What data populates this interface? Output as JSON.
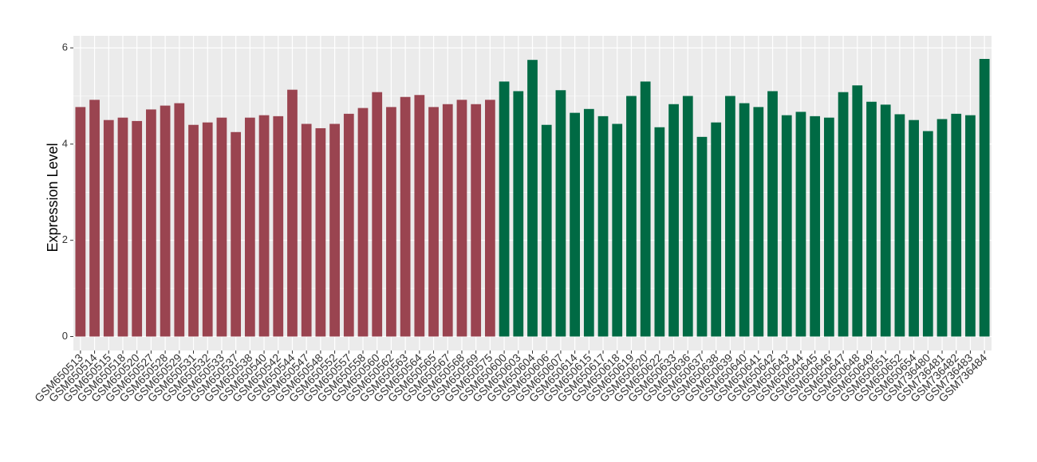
{
  "chart_data": {
    "type": "bar",
    "y_label": "Expression Level",
    "categories": [
      "GSM650513",
      "GSM650514",
      "GSM650515",
      "GSM650518",
      "GSM650520",
      "GSM650527",
      "GSM650528",
      "GSM650529",
      "GSM650531",
      "GSM650532",
      "GSM650533",
      "GSM650537",
      "GSM650538",
      "GSM650540",
      "GSM650542",
      "GSM650544",
      "GSM650547",
      "GSM650548",
      "GSM650552",
      "GSM650557",
      "GSM650558",
      "GSM650560",
      "GSM650562",
      "GSM650563",
      "GSM650564",
      "GSM650565",
      "GSM650567",
      "GSM650568",
      "GSM650569",
      "GSM650575",
      "GSM650600",
      "GSM650603",
      "GSM650604",
      "GSM650606",
      "GSM650607",
      "GSM650614",
      "GSM650615",
      "GSM650617",
      "GSM650618",
      "GSM650619",
      "GSM650620",
      "GSM650622",
      "GSM650633",
      "GSM650636",
      "GSM650637",
      "GSM650638",
      "GSM650639",
      "GSM650640",
      "GSM650641",
      "GSM650642",
      "GSM650643",
      "GSM650644",
      "GSM650645",
      "GSM650646",
      "GSM650647",
      "GSM650648",
      "GSM650649",
      "GSM650651",
      "GSM650652",
      "GSM650654",
      "GSM736480",
      "GSM736481",
      "GSM736482",
      "GSM736483",
      "GSM736484"
    ],
    "values": [
      4.77,
      4.92,
      4.5,
      4.55,
      4.48,
      4.72,
      4.8,
      4.85,
      4.4,
      4.45,
      4.55,
      4.25,
      4.55,
      4.6,
      4.58,
      5.13,
      4.42,
      4.33,
      4.42,
      4.63,
      4.75,
      5.08,
      4.77,
      4.98,
      5.02,
      4.77,
      4.83,
      4.92,
      4.83,
      4.92,
      5.3,
      5.1,
      5.75,
      4.4,
      5.12,
      4.65,
      4.73,
      4.58,
      4.42,
      5.0,
      5.3,
      4.35,
      4.83,
      5.0,
      4.15,
      4.45,
      5.0,
      4.85,
      4.77,
      5.1,
      4.6,
      4.67,
      4.58,
      4.55,
      5.08,
      5.22,
      4.88,
      4.82,
      4.62,
      4.5,
      4.27,
      4.52,
      4.63,
      4.6,
      5.77
    ],
    "colors": [
      "#9a4450",
      "#9a4450",
      "#9a4450",
      "#9a4450",
      "#9a4450",
      "#9a4450",
      "#9a4450",
      "#9a4450",
      "#9a4450",
      "#9a4450",
      "#9a4450",
      "#9a4450",
      "#9a4450",
      "#9a4450",
      "#9a4450",
      "#9a4450",
      "#9a4450",
      "#9a4450",
      "#9a4450",
      "#9a4450",
      "#9a4450",
      "#9a4450",
      "#9a4450",
      "#9a4450",
      "#9a4450",
      "#9a4450",
      "#9a4450",
      "#9a4450",
      "#9a4450",
      "#9a4450",
      "#006a44",
      "#006a44",
      "#006a44",
      "#006a44",
      "#006a44",
      "#006a44",
      "#006a44",
      "#006a44",
      "#006a44",
      "#006a44",
      "#006a44",
      "#006a44",
      "#006a44",
      "#006a44",
      "#006a44",
      "#006a44",
      "#006a44",
      "#006a44",
      "#006a44",
      "#006a44",
      "#006a44",
      "#006a44",
      "#006a44",
      "#006a44",
      "#006a44",
      "#006a44",
      "#006a44",
      "#006a44",
      "#006a44",
      "#006a44",
      "#006a44",
      "#006a44",
      "#006a44",
      "#006a44",
      "#006a44"
    ],
    "ylim": [
      -0.29,
      6.25
    ],
    "yticks": [
      0,
      2,
      4,
      6
    ],
    "minor_yticks": [
      1,
      3,
      5
    ],
    "grid": true
  }
}
